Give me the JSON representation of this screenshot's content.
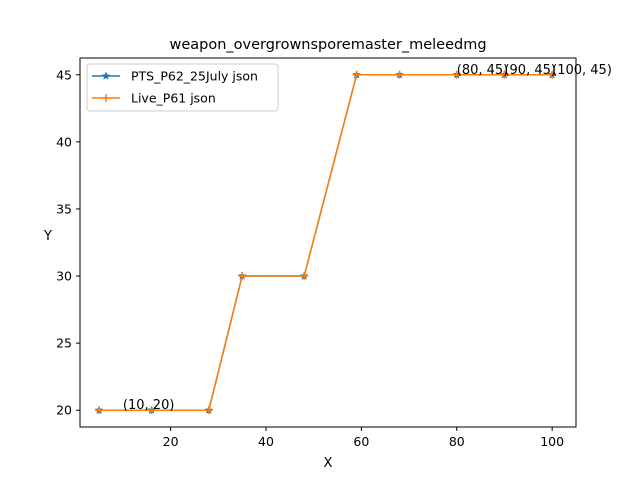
{
  "chart_data": {
    "type": "line",
    "title": "weapon_overgrownsporemaster_meleedmg",
    "xlabel": "X",
    "ylabel": "Y",
    "xlim": [
      1,
      105
    ],
    "ylim": [
      18.75,
      46.25
    ],
    "xticks": [
      20,
      40,
      60,
      80,
      100
    ],
    "yticks": [
      20,
      25,
      30,
      35,
      40,
      45
    ],
    "grid": false,
    "legend_position": "upper-left",
    "series": [
      {
        "name": "PTS_P62_25July json",
        "color": "#1f77b4",
        "marker": "star",
        "x": [
          5,
          16,
          28,
          35,
          48,
          59,
          68,
          80,
          90,
          100
        ],
        "y": [
          20,
          20,
          20,
          30,
          30,
          45,
          45,
          45,
          45,
          45
        ]
      },
      {
        "name": "Live_P61 json",
        "color": "#ff7f0e",
        "marker": "plus",
        "x": [
          5,
          16,
          28,
          35,
          48,
          59,
          68,
          80,
          90,
          100
        ],
        "y": [
          20,
          20,
          20,
          30,
          30,
          45,
          45,
          45,
          45,
          45
        ]
      }
    ],
    "annotations": [
      {
        "text": "(10, 20)",
        "x": 10,
        "y": 20
      },
      {
        "text": "(80, 45)",
        "x": 80,
        "y": 45
      },
      {
        "text": "(90, 45)",
        "x": 90,
        "y": 45
      },
      {
        "text": "(100, 45)",
        "x": 100,
        "y": 45
      }
    ]
  }
}
